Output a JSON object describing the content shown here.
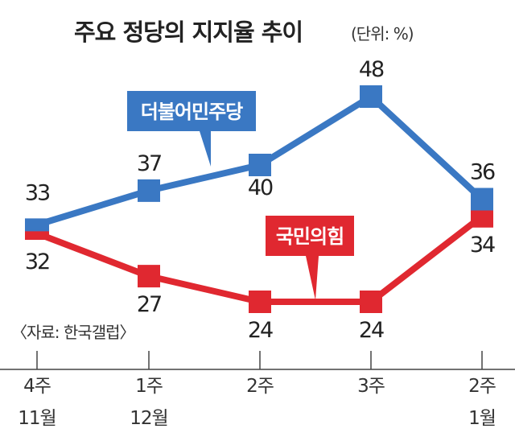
{
  "chart_data": {
    "type": "line",
    "title": "주요 정당의 지지율 추이",
    "unit": "(단위: %)",
    "source": "〈자료: 한국갤럽〉",
    "categories": [
      {
        "week": "4주",
        "month": "11월"
      },
      {
        "week": "1주",
        "month": "12월"
      },
      {
        "week": "2주",
        "month": ""
      },
      {
        "week": "3주",
        "month": ""
      },
      {
        "week": "2주",
        "month": "1월"
      }
    ],
    "series": [
      {
        "name": "더불어민주당",
        "color": "#3a78c3",
        "values": [
          33,
          37,
          40,
          48,
          36
        ]
      },
      {
        "name": "국민의힘",
        "color": "#e02830",
        "values": [
          32,
          27,
          24,
          24,
          34
        ]
      }
    ],
    "grid": false,
    "legend": "inline labels"
  }
}
